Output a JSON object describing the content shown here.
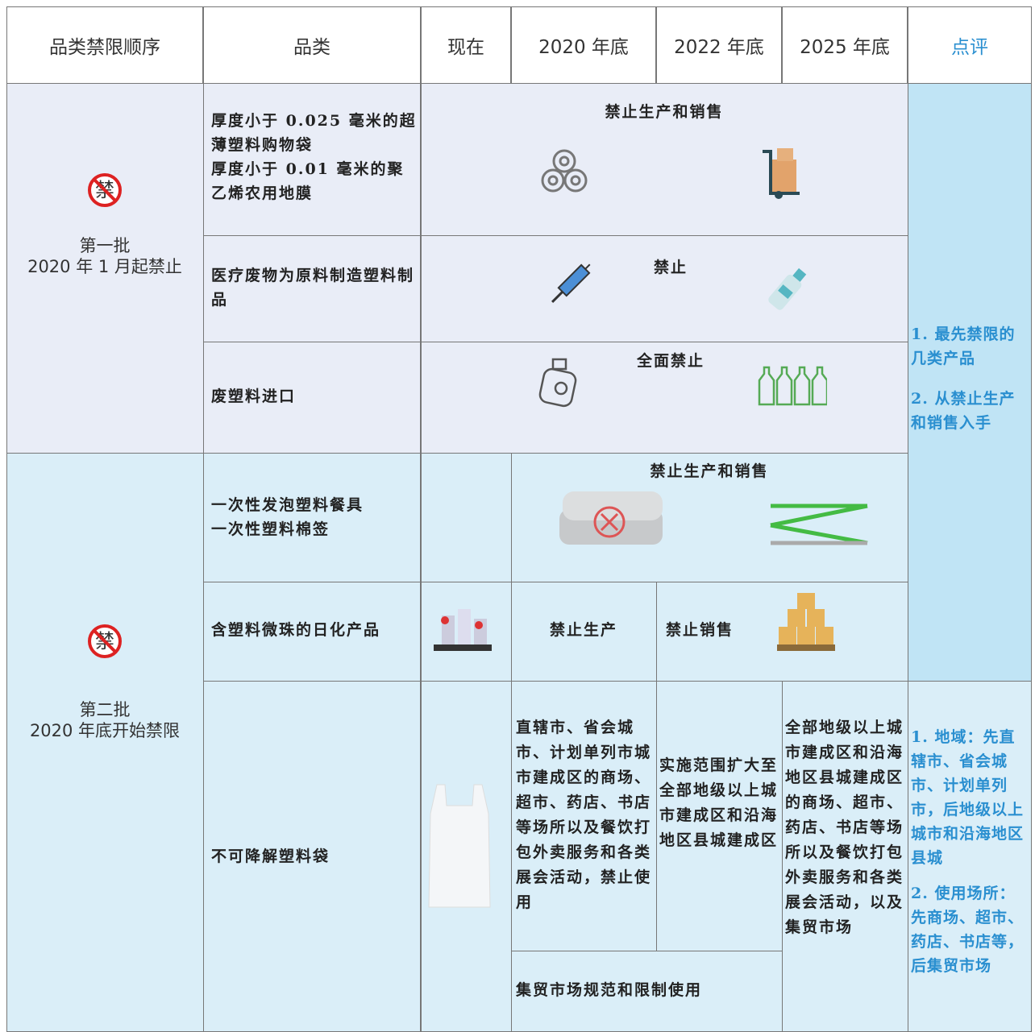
{
  "header": [
    "品类禁限顺序",
    "品类",
    "现在",
    "2020 年底",
    "2022 年底",
    "2025 年底",
    "点评"
  ],
  "badge": "禁",
  "batches": [
    {
      "lines": [
        "第一批",
        "2020 年 1 月起禁止"
      ]
    },
    {
      "lines": [
        "第二批",
        "2020 年底开始禁限"
      ]
    }
  ],
  "rows": [
    {
      "category": [
        "厚度小于 0.025 毫米的超薄塑料购物袋",
        "厚度小于 0.01 毫米的聚乙烯农用地膜"
      ],
      "rule": "禁止生产和销售"
    },
    {
      "category": [
        "医疗废物为原料制造塑料制品"
      ],
      "rule": "禁止"
    },
    {
      "category": [
        "废塑料进口"
      ],
      "rule": "全面禁止"
    },
    {
      "category": [
        "一次性发泡塑料餐具",
        "一次性塑料棉签"
      ],
      "rule": "禁止生产和销售"
    },
    {
      "category": [
        "含塑料微珠的日化产品"
      ],
      "rule_2020": "禁止生产",
      "rule_2022": "禁止销售"
    },
    {
      "category": [
        "不可降解塑料袋"
      ],
      "rule_2020": "直辖市、省会城市、计划单列市城市建成区的商场、超市、药店、书店等场所以及餐饮打包外卖服务和各类展会活动，禁止使用",
      "rule_2022": "实施范围扩大至全部地级以上城市建成区和沿海地区县城建成区",
      "rule_2025": "全部地级以上城市建成区和沿海地区县城建成区的商场、超市、药店、书店等场所以及餐饮打包外卖服务和各类展会活动，以及集贸市场",
      "market": "集贸市场规范和限制使用"
    }
  ],
  "comments": [
    [
      "1. 最先禁限的几类产品",
      "2. 从禁止生产和销售入手"
    ],
    [
      "1. 地域：先直辖市、省会城市、计划单列市，后地级以上城市和沿海地区县城",
      "2. 使用场所：先商场、超市、药店、书店等，后集贸市场"
    ]
  ]
}
